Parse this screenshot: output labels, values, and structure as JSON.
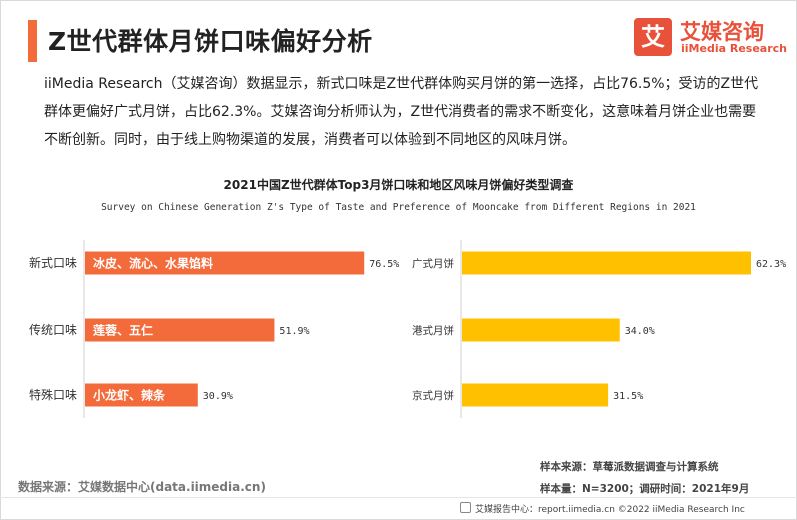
{
  "header": {
    "title": "Z世代群体月饼口味偏好分析",
    "logo_mark": "艾",
    "logo_cn": "艾媒咨询",
    "logo_en": "iiMedia Research"
  },
  "summary": "iiMedia Research（艾媒咨询）数据显示，新式口味是Z世代群体购买月饼的第一选择，占比76.5%；受访的Z世代群体更偏好广式月饼，占比62.3%。艾媒咨询分析师认为，Z世代消费者的需求不断变化，这意味着月饼企业也需要不断创新。同时，由于线上购物渠道的发展，消费者可以体验到不同地区的风味月饼。",
  "chart_data": [
    {
      "type": "bar",
      "orientation": "horizontal",
      "title": "2021中国Z世代群体Top3月饼口味和地区风味月饼偏好类型调查",
      "subtitle": "Survey on Chinese Generation Z's Type of Taste and Preference of Mooncake from Different Regions in 2021",
      "categories": [
        "新式口味",
        "传统口味",
        "特殊口味"
      ],
      "values": [
        76.5,
        51.9,
        30.9
      ],
      "value_labels": [
        "76.5%",
        "51.9%",
        "30.9%"
      ],
      "bar_texts": [
        "冰皮、流心、水果馅料",
        "莲蓉、五仁",
        "小龙虾、辣条"
      ],
      "unit": "%",
      "xlim": [
        0,
        100
      ],
      "color": "#f46b3b"
    },
    {
      "type": "bar",
      "orientation": "horizontal",
      "categories": [
        "广式月饼",
        "港式月饼",
        "京式月饼"
      ],
      "values": [
        62.3,
        34.0,
        31.5
      ],
      "value_labels": [
        "62.3%",
        "34.0%",
        "31.5%"
      ],
      "unit": "%",
      "xlim": [
        0,
        62.3
      ],
      "color": "#ffc000"
    }
  ],
  "footer": {
    "data_source": "数据来源：艾媒数据中心(data.iimedia.cn)",
    "sample_source": "样本来源：草莓派数据调查与计算系统",
    "sample_size": "样本量：N=3200；调研时间：2021年9月",
    "copyright": "艾媒报告中心：report.iimedia.cn  ©2022   iiMedia Research  Inc"
  }
}
